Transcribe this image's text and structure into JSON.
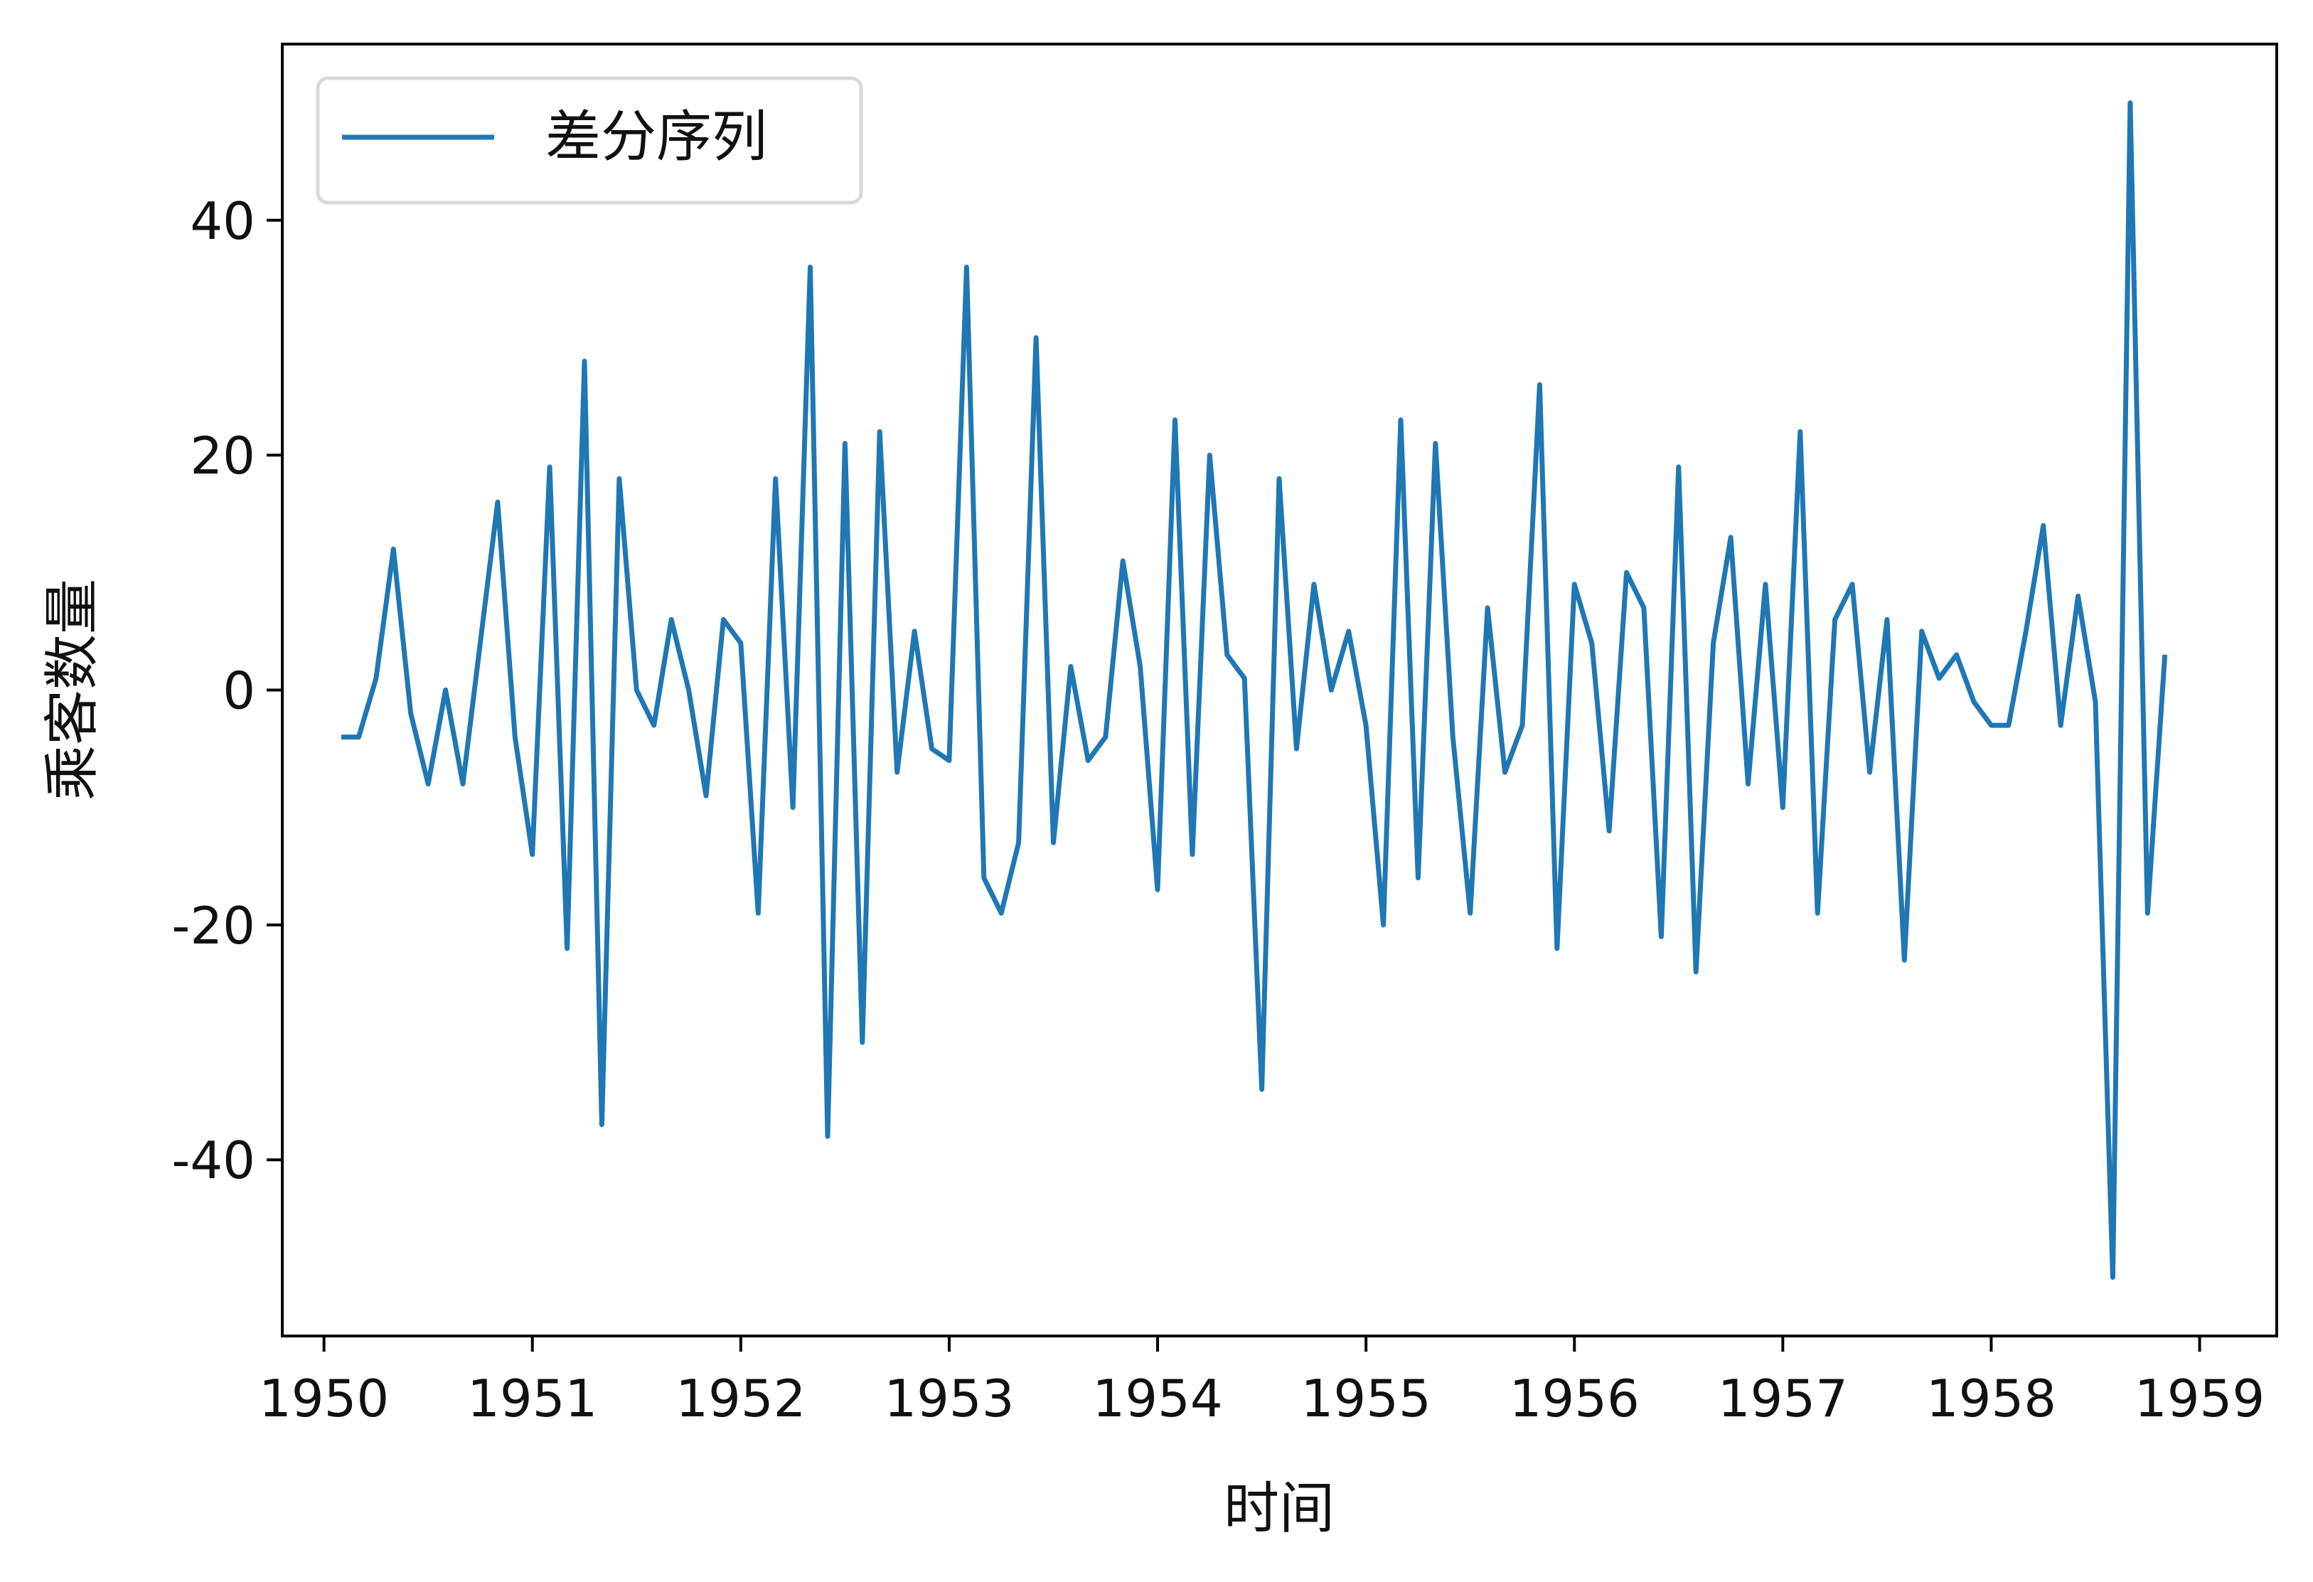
{
  "chart_data": {
    "type": "line",
    "title": "",
    "xlabel": "时间",
    "ylabel": "乘客数量",
    "xlim": [
      1949.8,
      1959.37
    ],
    "ylim": [
      -55,
      55
    ],
    "x_ticks": [
      "1950",
      "1951",
      "1952",
      "1953",
      "1954",
      "1955",
      "1956",
      "1957",
      "1958",
      "1959"
    ],
    "y_ticks": [
      "-40",
      "-20",
      "0",
      "20",
      "40"
    ],
    "grid": false,
    "legend": {
      "position": "upper-left"
    },
    "colors": {
      "series": "#1f77b4",
      "axes": "#000000",
      "legend_border": "#d9d9d9"
    },
    "start_year": 1950,
    "start_month": 2,
    "series": [
      {
        "name": "差分序列",
        "values": [
          -4,
          -4,
          1,
          12,
          -2,
          -8,
          0,
          -8,
          4,
          16,
          -4,
          -14,
          19,
          -22,
          28,
          -37,
          18,
          0,
          -3,
          6,
          0,
          -9,
          6,
          4,
          -19,
          18,
          -10,
          36,
          -38,
          21,
          -30,
          22,
          -7,
          5,
          -5,
          -6,
          36,
          -16,
          -19,
          -13,
          30,
          -13,
          2,
          -6,
          -4,
          11,
          2,
          -17,
          23,
          -14,
          20,
          3,
          1,
          -34,
          18,
          -5,
          9,
          0,
          5,
          -3,
          -20,
          23,
          -16,
          21,
          -4,
          -19,
          7,
          -7,
          -3,
          26,
          -22,
          9,
          4,
          -12,
          10,
          7,
          -21,
          19,
          -24,
          4,
          13,
          -8,
          9,
          -10,
          22,
          -19,
          6,
          9,
          -7,
          6,
          -23,
          5,
          1,
          3,
          -1,
          -3,
          -3,
          5,
          14,
          -3,
          8,
          -1,
          -50,
          50,
          -19,
          3
        ]
      }
    ]
  }
}
